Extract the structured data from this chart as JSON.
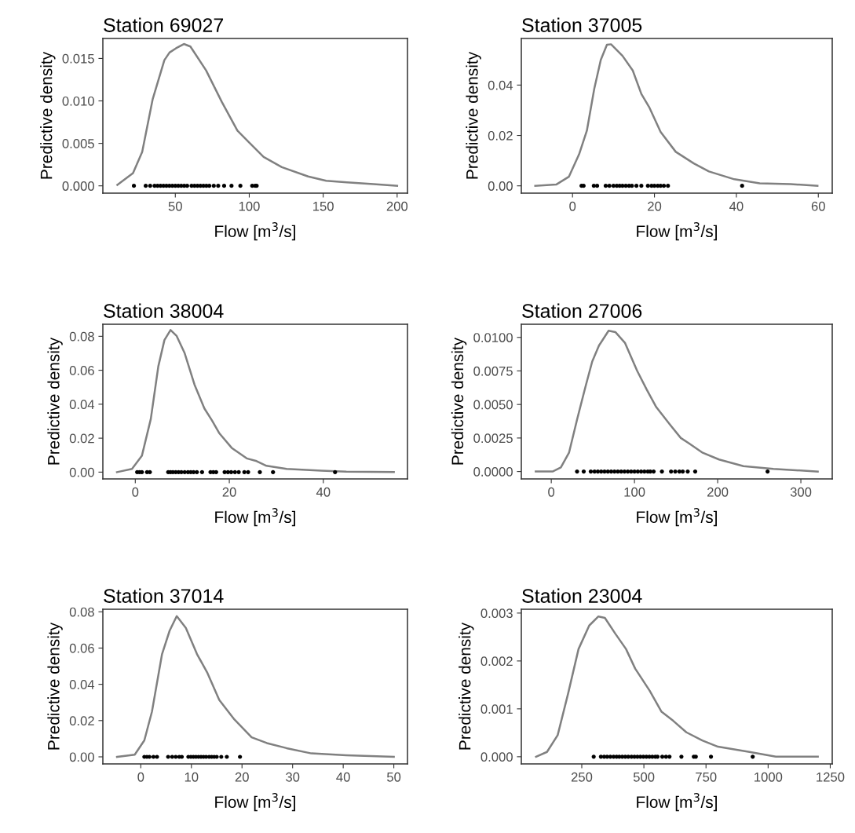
{
  "chart_data": [
    {
      "type": "line",
      "title": "Station 69027",
      "xlabel": "Flow [m$^{3}$/s]",
      "ylabel": "Predictive density",
      "xlim": [
        1,
        207
      ],
      "ylim": [
        -0.00086,
        0.01735
      ],
      "xticks": [
        50,
        100,
        150,
        200
      ],
      "yticks": [
        {
          "value": 0,
          "label": "0.000"
        },
        {
          "value": 0.005,
          "label": "0.005"
        },
        {
          "value": 0.01,
          "label": "0.010"
        },
        {
          "value": 0.015,
          "label": "0.015"
        }
      ],
      "series": [
        {
          "type": "line",
          "color": "#808080",
          "x": [
            10.8,
            21.4,
            27.6,
            34.7,
            42.6,
            46.1,
            50.5,
            55.8,
            60.2,
            70.8,
            81.4,
            92,
            100,
            109.7,
            122,
            139.8,
            152,
            166,
            184,
            200
          ],
          "values": [
            0.0001,
            0.0015,
            0.004,
            0.0102,
            0.0148,
            0.0157,
            0.0162,
            0.0167,
            0.0164,
            0.0136,
            0.0099,
            0.0065,
            0.0051,
            0.0034,
            0.0022,
            0.0011,
            0.0006,
            0.0004,
            0.0002,
            0
          ]
        },
        {
          "type": "scatter",
          "color": "#000000",
          "marker": "circle",
          "x": [
            22,
            30,
            33,
            36,
            38,
            40,
            42,
            44,
            46,
            48,
            50,
            52,
            54,
            56,
            58,
            61,
            63,
            65,
            67,
            69,
            71,
            73,
            76,
            79,
            83,
            88,
            94,
            102,
            104,
            105
          ],
          "values": [
            0,
            0,
            0,
            0,
            0,
            0,
            0,
            0,
            0,
            0,
            0,
            0,
            0,
            0,
            0,
            0,
            0,
            0,
            0,
            0,
            0,
            0,
            0,
            0,
            0,
            0,
            0,
            0,
            0,
            0
          ]
        }
      ]
    },
    {
      "type": "line",
      "title": "Station 37005",
      "xlabel": "Flow [m$^{3}$/s]",
      "ylabel": "Predictive density",
      "xlim": [
        -12.5,
        63.4
      ],
      "ylim": [
        -0.0029,
        0.0585
      ],
      "xticks": [
        0,
        20,
        40,
        60
      ],
      "yticks": [
        {
          "value": 0,
          "label": "0.00"
        },
        {
          "value": 0.02,
          "label": "0.02"
        },
        {
          "value": 0.04,
          "label": "0.04"
        }
      ],
      "series": [
        {
          "type": "line",
          "color": "#808080",
          "x": [
            -9.1,
            -4,
            -0.9,
            1.6,
            3.5,
            5.3,
            6.9,
            8.4,
            9.4,
            12.2,
            14.7,
            16.8,
            18.7,
            21.5,
            25.2,
            29.6,
            33.3,
            39.5,
            45.7,
            53.2,
            59.8
          ],
          "values": [
            0,
            0.0005,
            0.0036,
            0.0125,
            0.0219,
            0.0385,
            0.05,
            0.056,
            0.0562,
            0.0516,
            0.0458,
            0.0365,
            0.0313,
            0.0214,
            0.0135,
            0.0089,
            0.0057,
            0.0026,
            0.001,
            0.0007,
            0
          ]
        },
        {
          "type": "scatter",
          "color": "#000000",
          "marker": "circle",
          "x": [
            2.2,
            2.7,
            5.2,
            6,
            8.1,
            9,
            10,
            10.8,
            11.5,
            12.2,
            13,
            13.8,
            14.5,
            15.6,
            16.8,
            18.4,
            19.3,
            20,
            20.8,
            21.5,
            22.3,
            23.3,
            41.4
          ],
          "values": [
            0,
            0,
            0,
            0,
            0,
            0,
            0,
            0,
            0,
            0,
            0,
            0,
            0,
            0,
            0,
            0,
            0,
            0,
            0,
            0,
            0,
            0,
            0
          ]
        }
      ]
    },
    {
      "type": "line",
      "title": "Station 38004",
      "xlabel": "Flow [m$^{3}$/s]",
      "ylabel": "Predictive density",
      "xlim": [
        -6.9,
        57.9
      ],
      "ylim": [
        -0.004,
        0.0871
      ],
      "xticks": [
        0,
        20,
        40
      ],
      "yticks": [
        {
          "value": 0,
          "label": "0.00"
        },
        {
          "value": 0.02,
          "label": "0.02"
        },
        {
          "value": 0.04,
          "label": "0.04"
        },
        {
          "value": 0.06,
          "label": "0.06"
        },
        {
          "value": 0.08,
          "label": "0.08"
        }
      ],
      "series": [
        {
          "type": "line",
          "color": "#808080",
          "x": [
            -3.9,
            -0.7,
            1.4,
            3.3,
            4.9,
            6.2,
            7.5,
            8.8,
            10.5,
            12.6,
            14.7,
            16.3,
            17.9,
            20.5,
            23.7,
            25.8,
            27.9,
            32.2,
            39.6,
            44.9,
            55
          ],
          "values": [
            0,
            0.0019,
            0.0096,
            0.0313,
            0.0623,
            0.0778,
            0.0837,
            0.0802,
            0.0701,
            0.0515,
            0.0375,
            0.0305,
            0.0228,
            0.0143,
            0.0081,
            0.0065,
            0.0037,
            0.0019,
            0.0008,
            0.0003,
            0
          ]
        },
        {
          "type": "scatter",
          "color": "#000000",
          "marker": "circle",
          "x": [
            0.4,
            0.9,
            1.4,
            2.5,
            3.1,
            7,
            7.5,
            8,
            8.6,
            9.2,
            9.8,
            10.5,
            11.2,
            11.8,
            12.4,
            13.1,
            14.2,
            16,
            16.6,
            17.2,
            19,
            19.7,
            20.4,
            21.2,
            22,
            23.2,
            24,
            26.5,
            29.3,
            42.5
          ],
          "values": [
            0,
            0,
            0,
            0,
            0,
            0,
            0,
            0,
            0,
            0,
            0,
            0,
            0,
            0,
            0,
            0,
            0,
            0,
            0,
            0,
            0,
            0,
            0,
            0,
            0,
            0,
            0,
            0,
            0,
            0
          ]
        }
      ]
    },
    {
      "type": "line",
      "title": "Station 27006",
      "xlabel": "Flow [m$^{3}$/s]",
      "ylabel": "Predictive density",
      "xlim": [
        -36,
        337.7
      ],
      "ylim": [
        -0.00055,
        0.01098
      ],
      "xticks": [
        0,
        100,
        200,
        300
      ],
      "yticks": [
        {
          "value": 0,
          "label": "0.0000"
        },
        {
          "value": 0.0025,
          "label": "0.0025"
        },
        {
          "value": 0.005,
          "label": "0.0050"
        },
        {
          "value": 0.0075,
          "label": "0.0075"
        },
        {
          "value": 0.01,
          "label": "0.0100"
        }
      ],
      "series": [
        {
          "type": "line",
          "color": "#808080",
          "x": [
            -18.7,
            1.6,
            11.5,
            21.3,
            31.1,
            41,
            49.2,
            57.4,
            68.9,
            77,
            88.5,
            103.3,
            114.8,
            126.2,
            142.6,
            155.7,
            165.6,
            182,
            201.6,
            231,
            267,
            320.3
          ],
          "values": [
            0,
            0,
            0.0003,
            0.0014,
            0.0039,
            0.0063,
            0.0082,
            0.0094,
            0.0105,
            0.0104,
            0.0096,
            0.0075,
            0.0061,
            0.0048,
            0.0035,
            0.0025,
            0.0021,
            0.0014,
            0.0009,
            0.0004,
            0.0002,
            0
          ]
        },
        {
          "type": "scatter",
          "color": "#000000",
          "marker": "circle",
          "x": [
            31,
            39,
            47.5,
            52,
            56,
            60,
            64,
            68,
            72,
            76,
            80,
            84,
            88,
            92,
            96,
            100,
            104,
            108,
            112,
            116,
            119,
            123,
            133,
            144,
            149,
            154,
            158,
            164,
            173,
            260
          ],
          "values": [
            0,
            0,
            0,
            0,
            0,
            0,
            0,
            0,
            0,
            0,
            0,
            0,
            0,
            0,
            0,
            0,
            0,
            0,
            0,
            0,
            0,
            0,
            0,
            0,
            0,
            0,
            0,
            0,
            0,
            0
          ]
        }
      ]
    },
    {
      "type": "line",
      "title": "Station 37014",
      "xlabel": "Flow [m$^{3}$/s]",
      "ylabel": "Predictive density",
      "xlim": [
        -7.5,
        52.7
      ],
      "ylim": [
        -0.0039,
        0.0814
      ],
      "xticks": [
        0,
        10,
        20,
        30,
        40,
        50
      ],
      "yticks": [
        {
          "value": 0,
          "label": "0.00"
        },
        {
          "value": 0.02,
          "label": "0.02"
        },
        {
          "value": 0.04,
          "label": "0.04"
        },
        {
          "value": 0.06,
          "label": "0.06"
        },
        {
          "value": 0.08,
          "label": "0.08"
        }
      ],
      "series": [
        {
          "type": "line",
          "color": "#808080",
          "x": [
            -4.7,
            -1.2,
            0.7,
            2.2,
            4.2,
            5.7,
            7.1,
            8.9,
            11.1,
            13.1,
            15.5,
            18.5,
            21.9,
            24.9,
            28.8,
            33.7,
            40.6,
            50
          ],
          "values": [
            0,
            0.0012,
            0.0091,
            0.0249,
            0.0567,
            0.0696,
            0.0776,
            0.0711,
            0.0567,
            0.0466,
            0.0314,
            0.0206,
            0.0108,
            0.0076,
            0.0048,
            0.0019,
            0.0009,
            0
          ]
        },
        {
          "type": "scatter",
          "color": "#000000",
          "marker": "circle",
          "x": [
            0.7,
            1.2,
            1.7,
            2.5,
            3.2,
            5.4,
            6.2,
            6.9,
            7.6,
            8.1,
            9.4,
            9.9,
            10.4,
            10.9,
            11.4,
            11.9,
            12.4,
            12.9,
            13.5,
            14,
            14.5,
            15,
            15.9,
            17,
            19.6
          ],
          "values": [
            0,
            0,
            0,
            0,
            0,
            0,
            0,
            0,
            0,
            0,
            0,
            0,
            0,
            0,
            0,
            0,
            0,
            0,
            0,
            0,
            0,
            0,
            0,
            0,
            0
          ]
        }
      ]
    },
    {
      "type": "line",
      "title": "Station 23004",
      "xlabel": "Flow [m$^{3}$/s]",
      "ylabel": "Predictive density",
      "xlim": [
        6.7,
        1258
      ],
      "ylim": [
        -0.00015,
        0.00308
      ],
      "xticks": [
        250,
        500,
        750,
        1000,
        1250
      ],
      "yticks": [
        {
          "value": 0,
          "label": "0.000"
        },
        {
          "value": 0.001,
          "label": "0.001"
        },
        {
          "value": 0.002,
          "label": "0.002"
        },
        {
          "value": 0.003,
          "label": "0.003"
        }
      ],
      "series": [
        {
          "type": "line",
          "color": "#808080",
          "x": [
            66,
            110,
            153,
            195,
            237,
            280,
            317,
            343,
            385,
            428,
            465,
            523,
            571,
            618,
            671,
            735,
            798,
            925,
            1031,
            1200
          ],
          "values": [
            0,
            0.0001,
            0.00045,
            0.00132,
            0.00225,
            0.00274,
            0.00293,
            0.0029,
            0.00257,
            0.00225,
            0.00184,
            0.00138,
            0.00094,
            0.00075,
            0.00051,
            0.00034,
            0.00021,
            0.0001,
            0,
            0
          ]
        },
        {
          "type": "scatter",
          "color": "#000000",
          "marker": "circle",
          "x": [
            298,
            327,
            340,
            352,
            365,
            378,
            390,
            401,
            413,
            425,
            437,
            450,
            462,
            474,
            486,
            498,
            510,
            522,
            534,
            546,
            555,
            574,
            589,
            603,
            651,
            701,
            709,
            770,
            938
          ],
          "values": [
            0,
            0,
            0,
            0,
            0,
            0,
            0,
            0,
            0,
            0,
            0,
            0,
            0,
            0,
            0,
            0,
            0,
            0,
            0,
            0,
            0,
            0,
            0,
            0,
            0,
            0,
            0,
            0,
            0
          ]
        }
      ]
    }
  ]
}
